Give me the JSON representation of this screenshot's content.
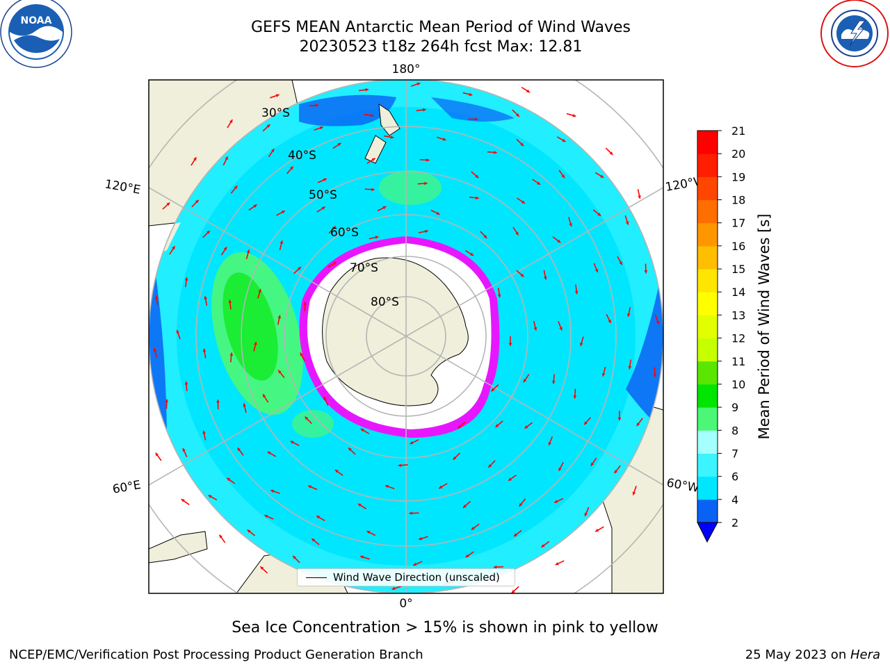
{
  "header": {
    "title": "GEFS MEAN Antarctic Mean Period of Wind Waves",
    "subtitle": "20230523 t18z 264h fcst   Max: 12.81"
  },
  "logos": {
    "noaa_left": "noaa-logo",
    "nws_right": "national-weather-service-logo"
  },
  "map": {
    "projection": "south-polar-stereographic",
    "longitude_labels": {
      "top": "180°",
      "bottom": "0°",
      "upper_left": "120°E",
      "upper_right": "120°W",
      "lower_left": "60°E",
      "lower_right": "60°W"
    },
    "latitude_labels": [
      "30°S",
      "40°S",
      "50°S",
      "60°S",
      "70°S",
      "80°S"
    ],
    "legend_label": "Wind Wave Direction (unscaled)",
    "arrow_color": "#ff0000",
    "sea_ice_colors": [
      "#ff00ff",
      "#ffff00"
    ],
    "land_color": "#efefdb"
  },
  "colorbar": {
    "label": "Mean Period of Wind Waves [s]",
    "ticks": [
      "2",
      "4",
      "6",
      "7",
      "8",
      "9",
      "10",
      "11",
      "12",
      "13",
      "14",
      "15",
      "16",
      "17",
      "18",
      "19",
      "20",
      "21"
    ],
    "colors": [
      "#0a62f5",
      "#00e6ff",
      "#3cf4ff",
      "#a6ffff",
      "#4cf776",
      "#00e600",
      "#5ae600",
      "#c6ff00",
      "#e2ff00",
      "#ffff00",
      "#ffe600",
      "#ffbe00",
      "#ff9600",
      "#ff6e00",
      "#ff4600",
      "#ff1e00",
      "#ff0000"
    ],
    "under_color": "#0000ff"
  },
  "footer": {
    "note": "Sea Ice Concentration > 15% is shown in pink to yellow",
    "left": "NCEP/EMC/Verification Post Processing Product Generation Branch",
    "right_prefix": "25 May 2023 on ",
    "right_host": "Hera"
  }
}
